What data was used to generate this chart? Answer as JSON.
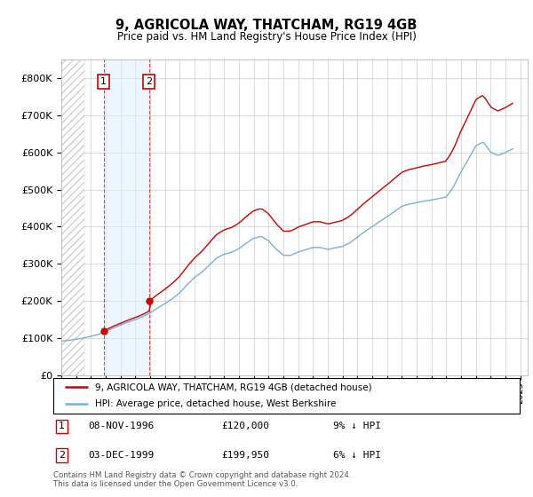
{
  "title": "9, AGRICOLA WAY, THATCHAM, RG19 4GB",
  "subtitle": "Price paid vs. HM Land Registry's House Price Index (HPI)",
  "ylim": [
    0,
    850000
  ],
  "yticks": [
    0,
    100000,
    200000,
    300000,
    400000,
    500000,
    600000,
    700000,
    800000
  ],
  "ytick_labels": [
    "£0",
    "£100K",
    "£200K",
    "£300K",
    "£400K",
    "£500K",
    "£600K",
    "£700K",
    "£800K"
  ],
  "sale1_date": 1996.86,
  "sale1_price": 120000,
  "sale2_date": 1999.92,
  "sale2_price": 199950,
  "red_line_color": "#cc0000",
  "blue_line_color": "#7ab0d4",
  "hatch_color": "#d0d0d0",
  "vspan_color": "#ddeeff",
  "footnote": "Contains HM Land Registry data © Crown copyright and database right 2024.\nThis data is licensed under the Open Government Licence v3.0.",
  "legend1_label": "9, AGRICOLA WAY, THATCHAM, RG19 4GB (detached house)",
  "legend2_label": "HPI: Average price, detached house, West Berkshire",
  "table_row1": [
    "1",
    "08-NOV-1996",
    "£120,000",
    "9% ↓ HPI"
  ],
  "table_row2": [
    "2",
    "03-DEC-1999",
    "£199,950",
    "6% ↓ HPI"
  ],
  "hpi_years": [
    1994.0,
    1994.5,
    1995.0,
    1995.5,
    1996.0,
    1996.5,
    1997.0,
    1997.5,
    1998.0,
    1998.5,
    1999.0,
    1999.5,
    2000.0,
    2000.5,
    2001.0,
    2001.5,
    2002.0,
    2002.5,
    2003.0,
    2003.5,
    2004.0,
    2004.5,
    2005.0,
    2005.5,
    2006.0,
    2006.5,
    2007.0,
    2007.5,
    2008.0,
    2008.5,
    2009.0,
    2009.5,
    2010.0,
    2010.5,
    2011.0,
    2011.5,
    2012.0,
    2012.5,
    2013.0,
    2013.5,
    2014.0,
    2014.5,
    2015.0,
    2015.5,
    2016.0,
    2016.5,
    2017.0,
    2017.5,
    2018.0,
    2018.5,
    2019.0,
    2019.5,
    2020.0,
    2020.5,
    2021.0,
    2021.5,
    2022.0,
    2022.5,
    2023.0,
    2023.5,
    2024.0,
    2024.5
  ],
  "hpi_values": [
    92000,
    94000,
    97000,
    100000,
    105000,
    110000,
    118000,
    127000,
    135000,
    143000,
    150000,
    158000,
    168000,
    181000,
    193000,
    206000,
    222000,
    244000,
    263000,
    278000,
    297000,
    316000,
    326000,
    331000,
    341000,
    356000,
    369000,
    374000,
    362000,
    340000,
    323000,
    323000,
    332000,
    338000,
    344000,
    344000,
    339000,
    343000,
    347000,
    357000,
    372000,
    387000,
    400000,
    414000,
    427000,
    441000,
    455000,
    461000,
    465000,
    469000,
    472000,
    476000,
    480000,
    508000,
    548000,
    582000,
    618000,
    628000,
    601000,
    592000,
    600000,
    610000
  ]
}
